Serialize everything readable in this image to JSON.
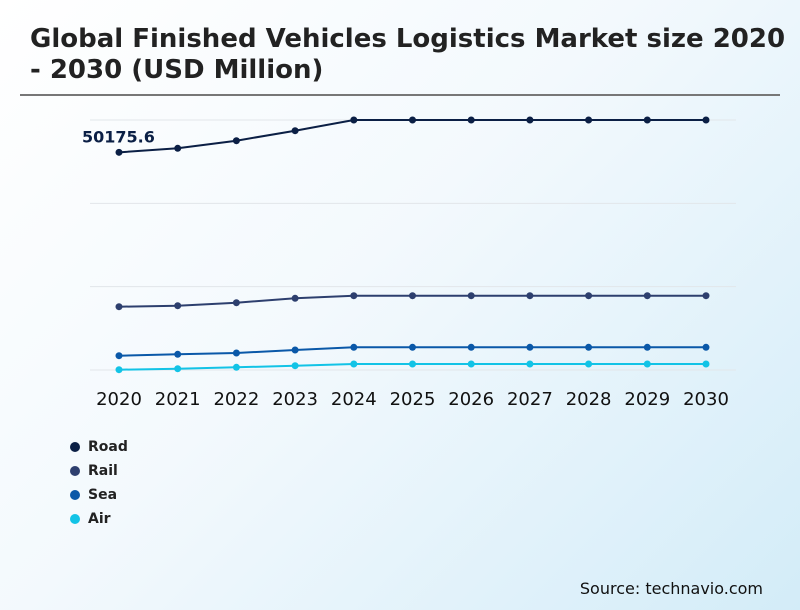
{
  "chart_data": {
    "type": "line",
    "title": "Global Finished Vehicles Logistics Market size 2020 - 2030 (USD Million)",
    "xlabel": "",
    "ylabel": "",
    "categories": [
      "2020",
      "2021",
      "2022",
      "2023",
      "2024",
      "2025",
      "2026",
      "2027",
      "2028",
      "2029",
      "2030"
    ],
    "ylim": [
      0,
      57625
    ],
    "grid": true,
    "legend_position": "bottom-left",
    "series": [
      {
        "name": "Road",
        "color": "#0b1f45",
        "values": [
          50175.6,
          51102,
          52854,
          55158,
          57625,
          57625,
          57625,
          57625,
          57625,
          57625,
          57625
        ]
      },
      {
        "name": "Rail",
        "color": "#2d3f6e",
        "values": [
          14590,
          14821,
          15513,
          16527,
          17126,
          17126,
          17126,
          17126,
          17126,
          17126,
          17126
        ]
      },
      {
        "name": "Sea",
        "color": "#0a58a8",
        "values": [
          3296,
          3619,
          3919,
          4610,
          5232,
          5232,
          5232,
          5232,
          5232,
          5232,
          5232
        ]
      },
      {
        "name": "Air",
        "color": "#12c3e6",
        "values": [
          69,
          300,
          622,
          991,
          1383,
          1383,
          1383,
          1383,
          1383,
          1383,
          1383
        ]
      }
    ],
    "annotations": [
      {
        "series": "Road",
        "category": "2020",
        "label": "50175.6"
      }
    ]
  },
  "source": "Source: technavio.com"
}
